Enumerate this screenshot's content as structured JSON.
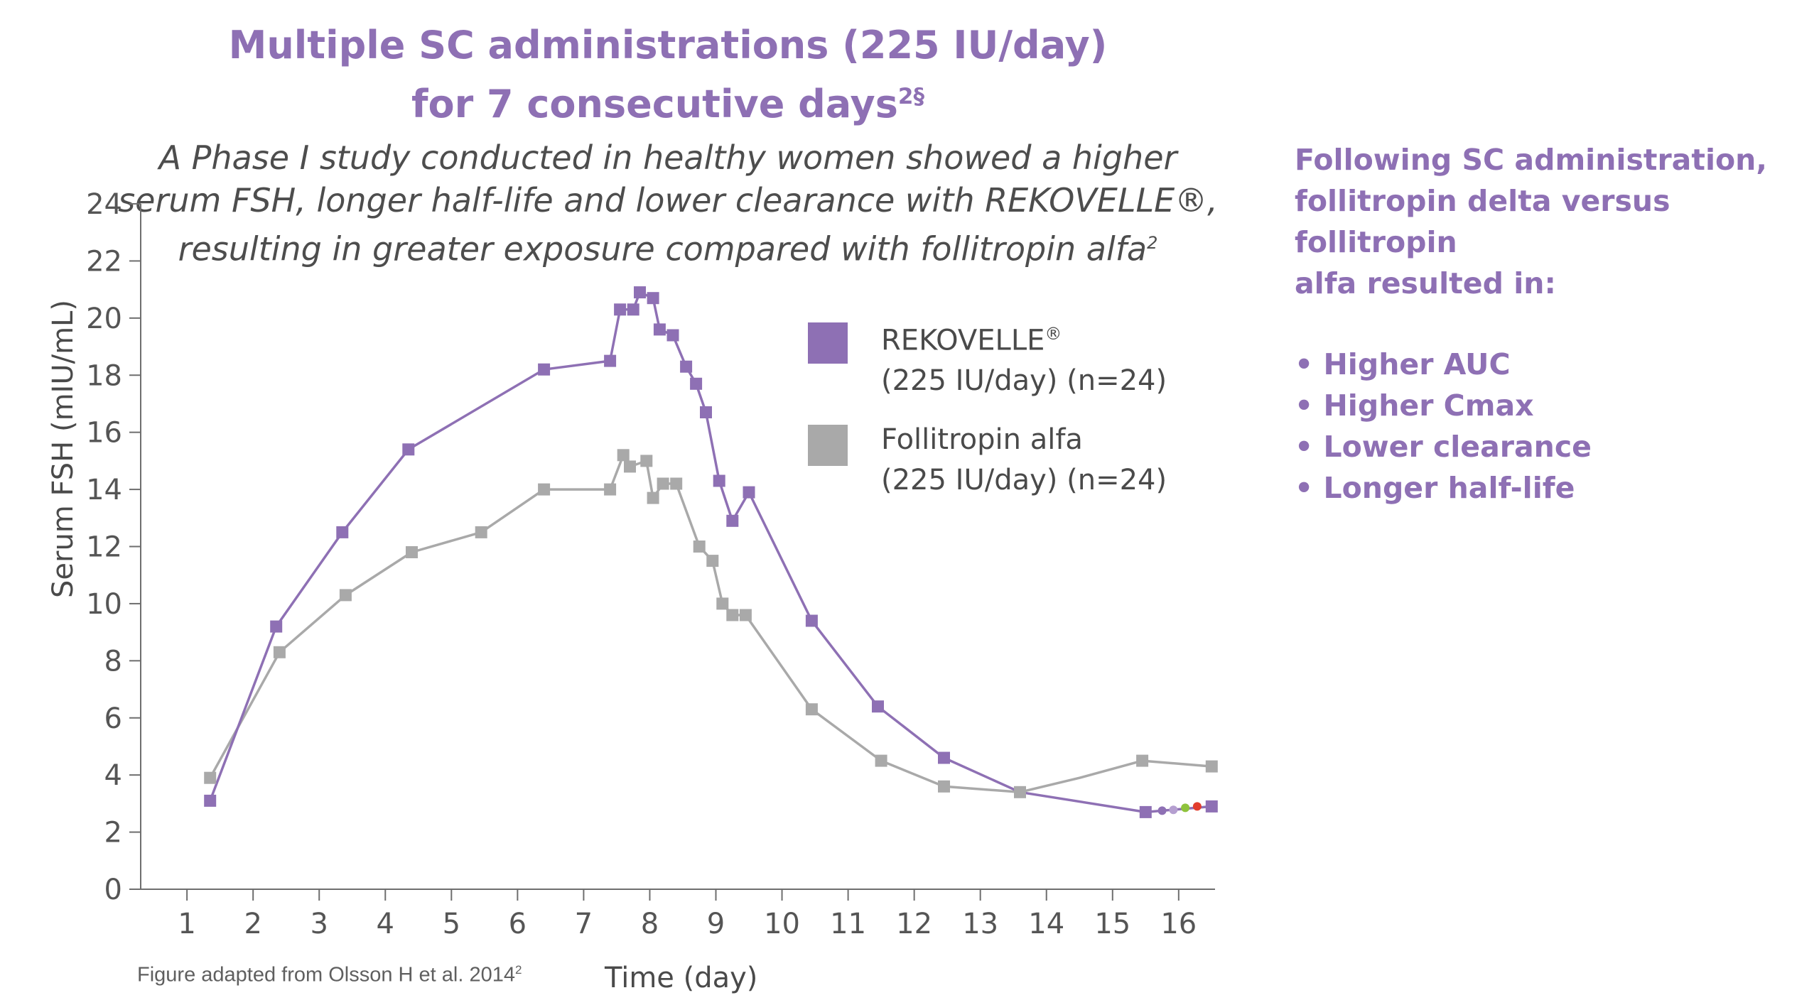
{
  "title_line1": "Multiple SC administrations (225 IU/day)",
  "title_line2": "for 7 consecutive days",
  "title_sup": "2§",
  "subtitle_line1": "A Phase I study conducted in healthy women showed a higher",
  "subtitle_line2": "serum FSH, longer half-life and lower clearance with REKOVELLE®,",
  "subtitle_line3": "resulting in greater exposure compared with follitropin alfa",
  "subtitle_sup": "2",
  "side": {
    "heading_line1": "Following SC administration,",
    "heading_line2": "follitropin delta versus follitropin",
    "heading_line3": "alfa resulted in:",
    "bullets": [
      "• Higher AUC",
      "• Higher Cmax",
      "• Lower clearance",
      "• Longer half-life"
    ]
  },
  "footnote": "Figure adapted from Olsson H et al. 2014",
  "footnote_sup": "2",
  "legend": {
    "rek_line1": "REKOVELLE",
    "rek_reg": "®",
    "rek_line2": "(225 IU/day) (n=24)",
    "fa_line1": "Follitropin alfa",
    "fa_line2": "(225 IU/day) (n=24)"
  },
  "colors": {
    "rekovelle": "#8e70b4",
    "follitropin_alfa": "#a9a9a9",
    "accent": "#8e70b4"
  },
  "chart_data": {
    "type": "line",
    "xlabel": "Time (day)",
    "ylabel": "Serum FSH (mIU/mL)",
    "xlim": [
      0.3,
      16.55
    ],
    "ylim": [
      0,
      24
    ],
    "xticks": [
      1,
      2,
      3,
      4,
      5,
      6,
      7,
      8,
      9,
      10,
      11,
      12,
      13,
      14,
      15,
      16
    ],
    "yticks": [
      0,
      2,
      4,
      6,
      8,
      10,
      12,
      14,
      16,
      18,
      20,
      22,
      24
    ],
    "legend_position": "right",
    "series": [
      {
        "name": "REKOVELLE® (225 IU/day) (n=24)",
        "marker": "square",
        "x": [
          1.35,
          2.35,
          3.35,
          4.35,
          6.4,
          7.4,
          7.55,
          7.75,
          7.85,
          8.05,
          8.15,
          8.35,
          8.55,
          8.7,
          8.85,
          9.05,
          9.25,
          9.5,
          10.45,
          11.45,
          12.45,
          13.6,
          15.5,
          16.5
        ],
        "y": [
          3.1,
          9.2,
          12.5,
          15.4,
          18.2,
          18.5,
          20.3,
          20.3,
          20.9,
          20.7,
          19.6,
          19.4,
          18.3,
          17.7,
          16.7,
          14.3,
          12.9,
          13.9,
          9.4,
          6.4,
          4.6,
          3.4,
          2.7,
          2.9
        ]
      },
      {
        "name": "Follitropin alfa (225 IU/day) (n=24)",
        "marker": "square",
        "x": [
          1.35,
          2.4,
          3.4,
          4.4,
          5.45,
          6.4,
          7.4,
          7.6,
          7.7,
          7.95,
          8.05,
          8.2,
          8.4,
          8.75,
          8.95,
          9.1,
          9.25,
          9.45,
          10.45,
          11.5,
          12.45,
          13.6,
          14.5,
          15.45,
          16.5
        ],
        "y": [
          3.9,
          8.3,
          10.3,
          11.8,
          12.5,
          14.0,
          14.0,
          15.2,
          14.8,
          15.0,
          13.7,
          14.2,
          14.2,
          12.0,
          11.5,
          10.0,
          9.6,
          9.6,
          6.3,
          4.5,
          3.6,
          3.4,
          3.9,
          4.5,
          4.3
        ]
      }
    ],
    "unmarked_rekovelle_points": [
      3.35,
      13.6,
      14.5
    ],
    "unmarked_fa_points": [
      3.4,
      14.5
    ],
    "dots": [
      {
        "x": 15.75,
        "y": 2.75,
        "color": "#8e70b4"
      },
      {
        "x": 15.92,
        "y": 2.78,
        "color": "#b59fd0"
      },
      {
        "x": 16.1,
        "y": 2.85,
        "color": "#8fc33c"
      },
      {
        "x": 16.28,
        "y": 2.9,
        "color": "#e23c2d"
      }
    ]
  }
}
